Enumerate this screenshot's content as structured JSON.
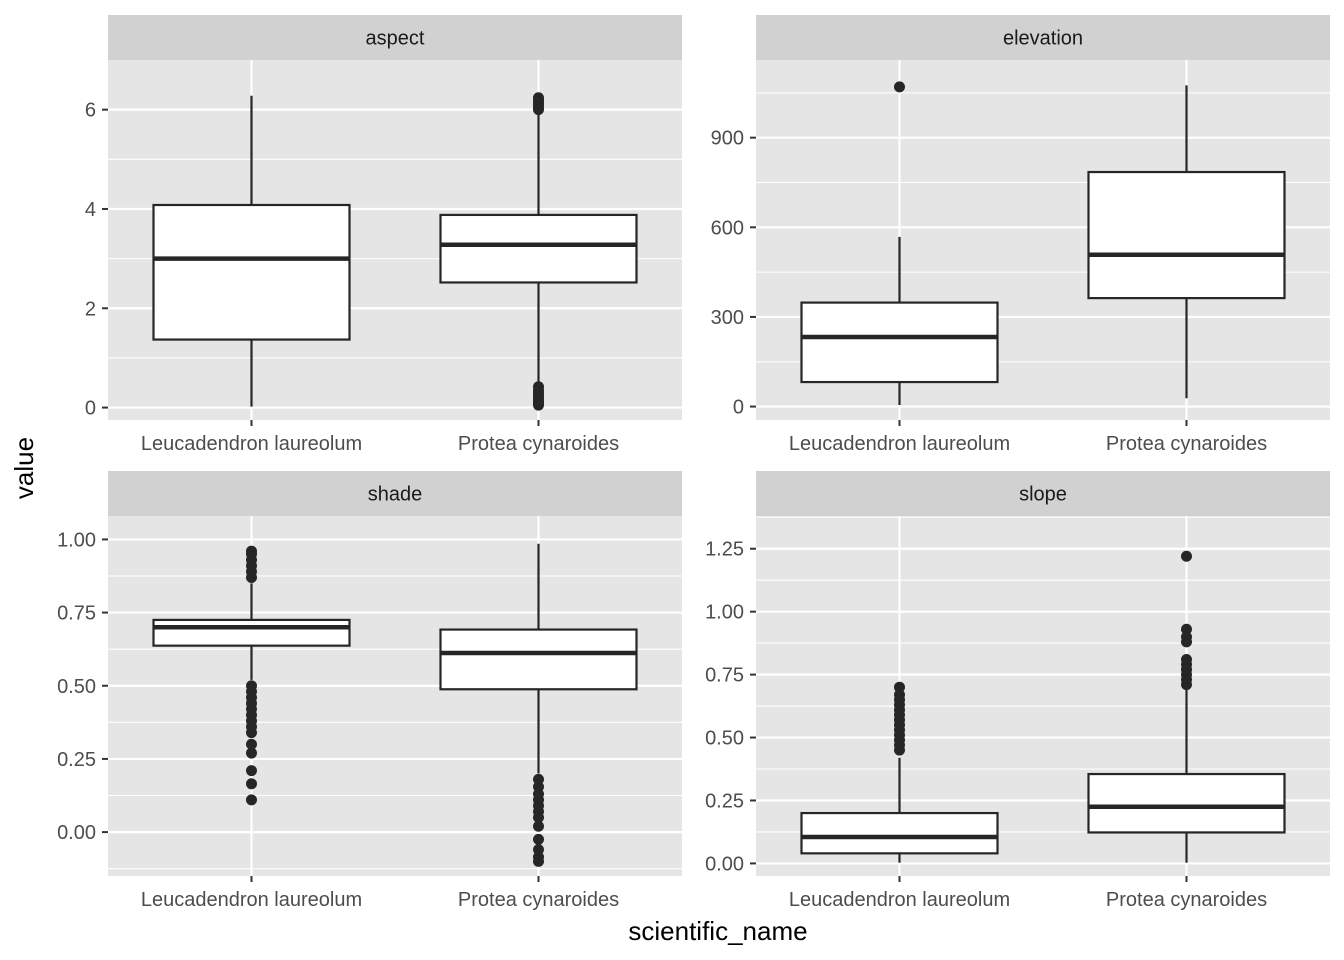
{
  "chart_data": {
    "type": "boxplot",
    "xlabel": "scientific_name",
    "ylabel": "value",
    "categories": [
      "Leucadendron laureolum",
      "Protea cynaroides"
    ],
    "colors": {
      "panel_bg": "#e5e5e5",
      "strip_bg": "#d1d1d1",
      "grid": "#ffffff",
      "box_fill": "#ffffff",
      "box_stroke": "#262626"
    },
    "facets": [
      {
        "title": "aspect",
        "ylim": [
          -0.25,
          7.0
        ],
        "y_ticks": [
          0,
          2,
          4,
          6
        ],
        "y_tick_labels": [
          "0",
          "2",
          "4",
          "6"
        ],
        "boxes": [
          {
            "category": "Leucadendron laureolum",
            "whisker_low": 0.02,
            "q1": 1.37,
            "median": 3.0,
            "q3": 4.08,
            "whisker_high": 6.28,
            "outliers": []
          },
          {
            "category": "Protea cynaroides",
            "whisker_low": 0.5,
            "q1": 2.52,
            "median": 3.28,
            "q3": 3.88,
            "whisker_high": 5.9,
            "outliers": [
              0.05,
              0.08,
              0.12,
              0.16,
              0.2,
              0.25,
              0.3,
              0.35,
              0.42,
              6.0,
              6.05,
              6.1,
              6.15,
              6.2,
              6.24
            ]
          }
        ]
      },
      {
        "title": "elevation",
        "ylim": [
          -45,
          1160
        ],
        "y_ticks": [
          0,
          300,
          600,
          900
        ],
        "y_tick_labels": [
          "0",
          "300",
          "600",
          "900"
        ],
        "boxes": [
          {
            "category": "Leucadendron laureolum",
            "whisker_low": 5,
            "q1": 82,
            "median": 233,
            "q3": 348,
            "whisker_high": 568,
            "outliers": [
              1070
            ]
          },
          {
            "category": "Protea cynaroides",
            "whisker_low": 28,
            "q1": 363,
            "median": 508,
            "q3": 785,
            "whisker_high": 1075,
            "outliers": []
          }
        ]
      },
      {
        "title": "shade",
        "ylim": [
          -0.15,
          1.08
        ],
        "y_ticks": [
          0,
          0.25,
          0.5,
          0.75,
          1.0
        ],
        "y_tick_labels": [
          "0.00",
          "0.25",
          "0.50",
          "0.75",
          "1.00"
        ],
        "boxes": [
          {
            "category": "Leucadendron laureolum",
            "whisker_low": 0.52,
            "q1": 0.637,
            "median": 0.7,
            "q3": 0.725,
            "whisker_high": 0.85,
            "outliers": [
              0.11,
              0.165,
              0.21,
              0.27,
              0.3,
              0.34,
              0.36,
              0.38,
              0.4,
              0.42,
              0.44,
              0.46,
              0.48,
              0.5,
              0.87,
              0.89,
              0.91,
              0.93,
              0.95,
              0.96
            ]
          },
          {
            "category": "Protea cynaroides",
            "whisker_low": 0.2,
            "q1": 0.488,
            "median": 0.612,
            "q3": 0.692,
            "whisker_high": 0.985,
            "outliers": [
              -0.1,
              -0.085,
              -0.06,
              -0.025,
              0.02,
              0.05,
              0.07,
              0.09,
              0.11,
              0.13,
              0.155,
              0.18
            ]
          }
        ]
      },
      {
        "title": "slope",
        "ylim": [
          -0.05,
          1.38
        ],
        "y_ticks": [
          0,
          0.25,
          0.5,
          0.75,
          1.0,
          1.25
        ],
        "y_tick_labels": [
          "0.00",
          "0.25",
          "0.50",
          "0.75",
          "1.00",
          "1.25"
        ],
        "boxes": [
          {
            "category": "Leucadendron laureolum",
            "whisker_low": 0.003,
            "q1": 0.04,
            "median": 0.105,
            "q3": 0.2,
            "whisker_high": 0.42,
            "outliers": [
              0.45,
              0.47,
              0.49,
              0.51,
              0.53,
              0.55,
              0.57,
              0.59,
              0.61,
              0.63,
              0.65,
              0.67,
              0.7
            ]
          },
          {
            "category": "Protea cynaroides",
            "whisker_low": 0.003,
            "q1": 0.123,
            "median": 0.225,
            "q3": 0.355,
            "whisker_high": 0.69,
            "outliers": [
              0.71,
              0.73,
              0.75,
              0.77,
              0.79,
              0.81,
              0.88,
              0.9,
              0.93,
              1.22
            ]
          }
        ]
      }
    ]
  }
}
